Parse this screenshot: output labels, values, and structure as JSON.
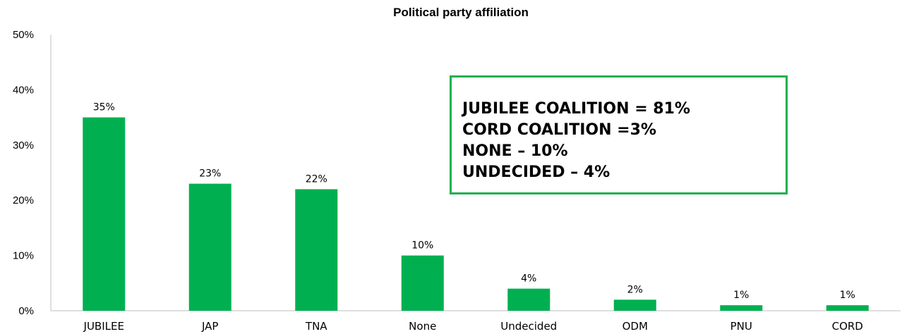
{
  "chart_data": {
    "type": "bar",
    "title": "Political party affiliation",
    "categories": [
      "JUBILEE",
      "JAP",
      "TNA",
      "None",
      "Undecided",
      "ODM",
      "PNU",
      "CORD"
    ],
    "values": [
      35,
      23,
      22,
      10,
      4,
      2,
      1,
      1
    ],
    "data_labels": [
      "35%",
      "23%",
      "22%",
      "10%",
      "4%",
      "2%",
      "1%",
      "1%"
    ],
    "ylim": [
      0,
      50
    ],
    "y_ticks": [
      0,
      10,
      20,
      30,
      40,
      50
    ],
    "y_tick_labels": [
      "0%",
      "10%",
      "20%",
      "30%",
      "40%",
      "50%"
    ],
    "xlabel": "",
    "ylabel": "",
    "grid": false,
    "bar_color": "#00b050"
  },
  "annotation": {
    "border_color": "#1fb050",
    "lines": [
      "JUBILEE COALITION = 81%",
      "CORD COALITION =3%",
      "NONE – 10%",
      "UNDECIDED – 4%"
    ]
  }
}
